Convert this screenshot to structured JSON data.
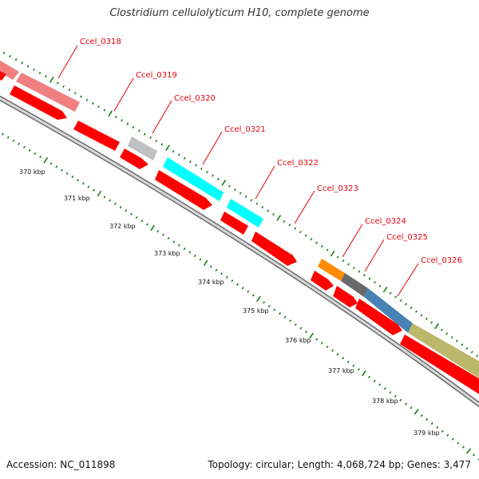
{
  "title": "Clostridium cellulolyticum H10, complete genome",
  "accession": "Accession: NC_011898",
  "topology": "Topology: circular; Length: 4,068,724 bp; Genes: 3,477",
  "colors": {
    "backbone_fill": "#d8d8d8",
    "backbone_edge": "#6b6b6b",
    "cds": "#ff0000",
    "label": "#e8000b",
    "ticks": "#1a7a1a"
  },
  "gene_labels": [
    {
      "text": "Ccel_0318",
      "color": "#e8000b"
    },
    {
      "text": "Ccel_0319",
      "color": "#e8000b"
    },
    {
      "text": "Ccel_0320",
      "color": "#e8000b"
    },
    {
      "text": "Ccel_0321",
      "color": "#e8000b"
    },
    {
      "text": "Ccel_0322",
      "color": "#e8000b"
    },
    {
      "text": "Ccel_0323",
      "color": "#e8000b"
    },
    {
      "text": "Ccel_0324",
      "color": "#e8000b"
    },
    {
      "text": "Ccel_0325",
      "color": "#e8000b"
    },
    {
      "text": "Ccel_0326",
      "color": "#e8000b"
    }
  ],
  "feature_colors": [
    "#f08080",
    "#f08080",
    "#c0c0c0",
    "#00ffff",
    "#00ffff",
    "#ff8c00",
    "#696969",
    "#4682b4",
    "#bdb76b"
  ],
  "scale_labels": [
    "370 kbp",
    "371 kbp",
    "372 kbp",
    "373 kbp",
    "374 kbp",
    "375 kbp",
    "376 kbp",
    "377 kbp",
    "378 kbp",
    "379 kbp"
  ]
}
